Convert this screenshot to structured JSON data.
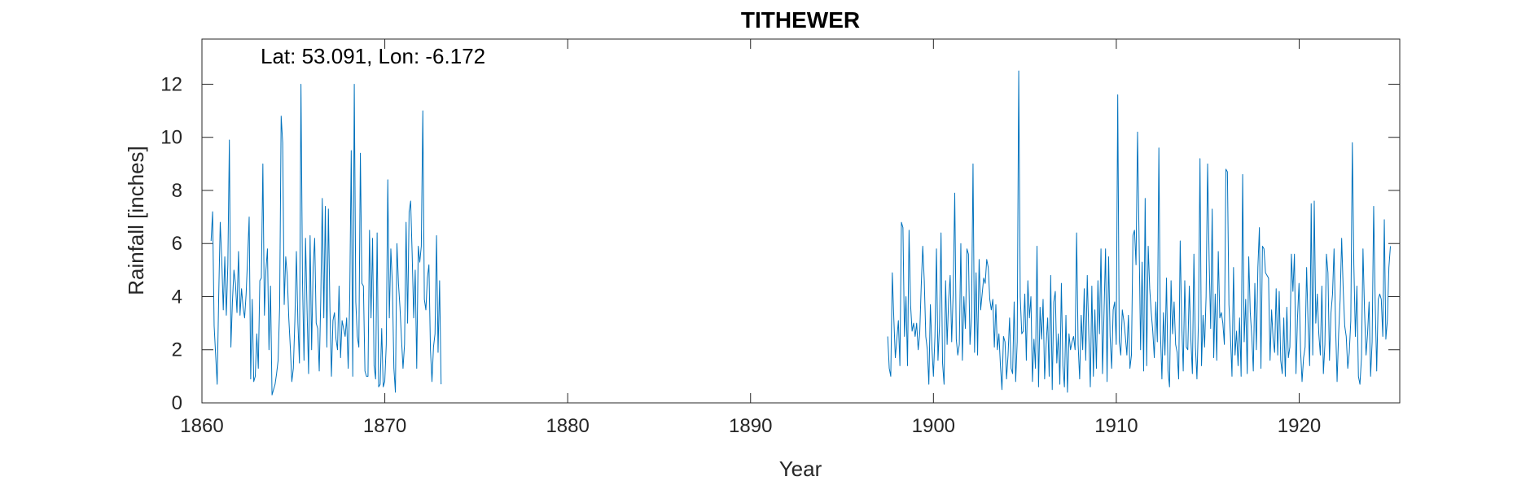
{
  "chart_data": {
    "type": "line",
    "title": "TITHEWER",
    "xlabel": "Year",
    "ylabel": "Rainfall [inches]",
    "annotation": "Lat: 53.091, Lon: -6.172",
    "xlim": [
      1860,
      1925.5
    ],
    "ylim": [
      0,
      13.7
    ],
    "xticks": [
      1860,
      1870,
      1880,
      1890,
      1900,
      1910,
      1920
    ],
    "yticks": [
      0,
      2,
      4,
      6,
      8,
      10,
      12
    ],
    "grid": false,
    "box": true,
    "line_color": "#0072BD",
    "series": [
      {
        "segments": [
          {
            "x_start": 1860.5,
            "step": 0.0833,
            "values": [
              6.1,
              7.2,
              2.9,
              1.8,
              0.7,
              4.0,
              6.8,
              5.4,
              3.5,
              5.5,
              3.3,
              5.2,
              9.9,
              2.1,
              3.8,
              5.0,
              4.5,
              3.4,
              5.7,
              3.3,
              4.3,
              3.6,
              3.2,
              4.1,
              5.5,
              7.0,
              0.9,
              3.9,
              0.8,
              1.0,
              2.6,
              1.3,
              4.6,
              4.7,
              9.0,
              3.3,
              5.0,
              5.8,
              2.0,
              4.4,
              0.3,
              0.5,
              0.7,
              1.1,
              1.6,
              3.6,
              10.8,
              9.8,
              3.7,
              5.5,
              4.8,
              3.2,
              2.1,
              0.8,
              1.3,
              3.1,
              5.7,
              3.0,
              1.5,
              12.0,
              4.6,
              1.6,
              6.2,
              3.5,
              1.1,
              6.3,
              2.0,
              5.1,
              6.2,
              3.0,
              2.8,
              1.2,
              3.9,
              7.7,
              3.2,
              7.4,
              2.1,
              7.3,
              3.6,
              1.0,
              3.1,
              3.4,
              2.4,
              2.0,
              4.4,
              1.7,
              3.1,
              2.8,
              2.5,
              3.2,
              1.3,
              3.9,
              9.5,
              1.0,
              12.0,
              3.8,
              2.5,
              2.1,
              9.4,
              4.5,
              4.4,
              1.2,
              1.0,
              1.0,
              6.5,
              3.2,
              6.2,
              1.4,
              0.9,
              6.4,
              0.6,
              0.7,
              2.8,
              0.6,
              0.8,
              2.2,
              8.4,
              3.2,
              5.8,
              4.5,
              1.3,
              0.4,
              6.0,
              4.5,
              3.6,
              2.4,
              1.3,
              2.2,
              6.8,
              3.0,
              7.2,
              7.6,
              5.6,
              3.2,
              5.0,
              1.3,
              5.9,
              5.3,
              5.9,
              11.0,
              3.9,
              3.5,
              4.7,
              5.2,
              2.0,
              0.8,
              2.1,
              2.6,
              6.3,
              1.9,
              4.6,
              0.7
            ]
          },
          {
            "x_start": 1897.5,
            "step": 0.0833,
            "values": [
              2.5,
              1.3,
              1.0,
              4.9,
              3.2,
              1.7,
              2.4,
              3.1,
              1.4,
              6.8,
              6.6,
              2.5,
              4.0,
              1.4,
              6.5,
              3.7,
              2.7,
              3.0,
              2.5,
              3.0,
              2.0,
              2.6,
              4.4,
              5.9,
              4.6,
              2.5,
              2.0,
              0.7,
              3.7,
              2.1,
              1.0,
              2.5,
              5.8,
              1.6,
              2.9,
              6.4,
              1.5,
              0.7,
              4.6,
              2.2,
              3.9,
              4.8,
              2.3,
              4.2,
              7.9,
              2.4,
              1.8,
              2.2,
              6.0,
              1.6,
              4.0,
              2.8,
              5.8,
              5.6,
              2.2,
              3.2,
              9.0,
              1.9,
              4.9,
              1.8,
              5.4,
              3.5,
              4.1,
              4.7,
              4.5,
              5.4,
              5.1,
              3.9,
              3.5,
              3.9,
              2.1,
              3.7,
              2.0,
              2.6,
              1.4,
              0.5,
              2.5,
              2.3,
              0.9,
              1.8,
              3.2,
              1.3,
              1.1,
              3.8,
              0.8,
              2.3,
              12.5,
              4.0,
              2.6,
              2.7,
              4.1,
              1.6,
              4.6,
              3.2,
              4.0,
              0.8,
              2.4,
              1.3,
              5.9,
              0.6,
              3.6,
              2.4,
              3.9,
              0.9,
              2.2,
              3.2,
              1.0,
              4.8,
              0.5,
              3.8,
              4.2,
              1.5,
              2.6,
              0.7,
              4.5,
              1.4,
              0.6,
              3.3,
              0.4,
              2.6,
              2.0,
              2.3,
              2.5,
              2.0,
              6.4,
              2.2,
              0.9,
              3.3,
              2.0,
              4.3,
              1.6,
              4.8,
              2.6,
              0.6,
              4.4,
              1.0,
              3.5,
              1.3,
              4.6,
              2.6,
              5.8,
              1.1,
              3.4,
              5.8,
              0.8,
              5.5,
              2.5,
              1.3,
              3.5,
              3.8,
              2.2,
              11.6,
              2.3,
              1.8,
              3.5,
              3.1,
              2.5,
              1.8,
              3.3,
              1.3,
              1.8,
              6.3,
              6.5,
              5.2,
              10.2,
              6.2,
              2.0,
              5.3,
              1.2,
              7.7,
              1.4,
              5.9,
              4.3,
              3.4,
              2.7,
              1.7,
              3.8,
              2.3,
              9.6,
              2.7,
              0.9,
              3.4,
              1.8,
              4.7,
              1.2,
              0.6,
              4.6,
              2.6,
              3.8,
              2.2,
              1.9,
              0.9,
              6.1,
              3.0,
              1.2,
              4.6,
              2.1,
              2.0,
              4.4,
              2.4,
              1.1,
              5.6,
              2.1,
              0.9,
              3.1,
              9.2,
              1.4,
              3.3,
              2.1,
              4.0,
              9.0,
              5.4,
              2.8,
              7.3,
              1.7,
              4.1,
              1.6,
              5.7,
              3.2,
              3.4,
              3.0,
              2.2,
              8.8,
              8.7,
              3.7,
              2.5,
              1.0,
              5.1,
              1.8,
              2.7,
              1.4,
              3.2,
              1.0,
              8.6,
              2.3,
              3.9,
              1.1,
              5.5,
              3.4,
              2.5,
              1.2,
              4.5,
              2.0,
              5.1,
              6.6,
              1.3,
              5.9,
              5.8,
              4.9,
              4.8,
              4.7,
              1.6,
              3.5,
              2.4,
              1.9,
              4.3,
              1.8,
              4.2,
              1.6,
              1.1,
              3.2,
              1.0,
              3.6,
              1.7,
              2.1,
              5.6,
              4.2,
              5.6,
              1.1,
              3.2,
              4.5,
              2.0,
              0.8,
              1.7,
              2.1,
              5.1,
              2.9,
              1.4,
              7.5,
              1.8,
              7.6,
              3.0,
              4.1,
              2.6,
              1.8,
              4.4,
              1.1,
              2.2,
              5.6,
              4.9,
              1.6,
              3.4,
              4.1,
              5.8,
              2.9,
              0.8,
              2.6,
              3.9,
              6.2,
              4.3,
              2.9,
              2.5,
              1.3,
              1.9,
              3.1,
              9.8,
              5.2,
              2.5,
              4.4,
              1.0,
              0.7,
              1.7,
              5.8,
              3.5,
              1.8,
              2.6,
              3.8,
              1.0,
              2.3,
              7.4,
              3.8,
              1.2,
              3.9,
              4.1,
              3.9,
              2.5,
              6.9,
              2.4,
              3.1,
              5.1,
              5.9
            ]
          }
        ]
      }
    ]
  }
}
